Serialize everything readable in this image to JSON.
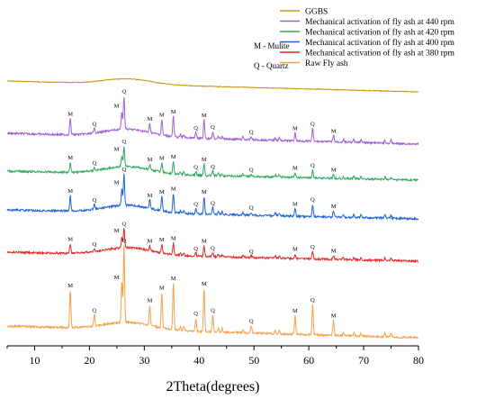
{
  "chart_data": {
    "type": "line",
    "xlabel": "2Theta(degrees)",
    "ylabel": "",
    "xlim": [
      5,
      80
    ],
    "xticks": [
      10,
      20,
      30,
      40,
      50,
      60,
      70,
      80
    ],
    "grid": false,
    "legend_position": "top-right",
    "notes": [
      "M - Mulite",
      "Q - Quartz"
    ],
    "peaks": [
      {
        "x": 16.5,
        "h": 1.0,
        "label": "M"
      },
      {
        "x": 20.9,
        "h": 0.3,
        "label": "Q"
      },
      {
        "x": 25.9,
        "h": 1.1,
        "label": "M"
      },
      {
        "x": 26.3,
        "h": 2.05,
        "label": "Q"
      },
      {
        "x": 31.0,
        "h": 0.55,
        "label": "M"
      },
      {
        "x": 33.2,
        "h": 0.95,
        "label": "M"
      },
      {
        "x": 35.3,
        "h": 1.25,
        "label": "M"
      },
      {
        "x": 39.4,
        "h": 0.35,
        "label": "Q"
      },
      {
        "x": 40.9,
        "h": 1.15,
        "label": "M"
      },
      {
        "x": 42.5,
        "h": 0.45,
        "label": "Q"
      },
      {
        "x": 49.5,
        "h": 0.2,
        "label": "Q"
      },
      {
        "x": 57.5,
        "h": 0.5,
        "label": "M"
      },
      {
        "x": 60.7,
        "h": 0.8,
        "label": "Q"
      },
      {
        "x": 64.5,
        "h": 0.4,
        "label": "M"
      }
    ],
    "series": [
      {
        "name": "GGBS",
        "color": "#c8960c",
        "baseline_start": 0.0,
        "baseline_end": 0.0,
        "amorphous_hump": 0.0,
        "peak_scale": 0.0,
        "hump": true
      },
      {
        "name": "Mechanical activation of fly ash at 440 rpm",
        "color": "#a05fd6",
        "peak_scale": 1.0
      },
      {
        "name": "Mechanical activation of fly ash at 420 rpm",
        "color": "#2eaa5e",
        "peak_scale": 0.8
      },
      {
        "name": "Mechanical activation of fly ash at 400 rpm",
        "color": "#1f63d8",
        "peak_scale": 0.95
      },
      {
        "name": "Mechanical activation of fly ash at 380 rpm",
        "color": "#e02828",
        "peak_scale": 0.75
      },
      {
        "name": "Raw Fly ash",
        "color": "#f5a04a",
        "peak_scale": 2.1
      }
    ]
  }
}
